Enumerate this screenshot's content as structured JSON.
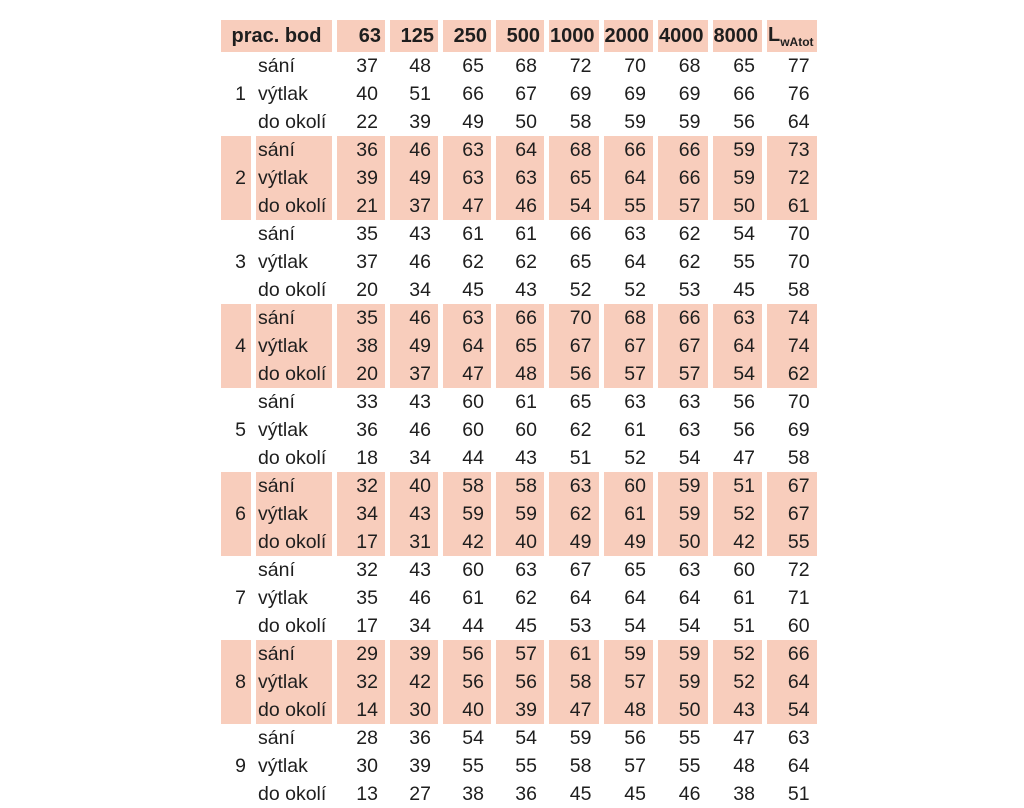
{
  "table": {
    "corner_header": "prac. bod",
    "frequency_headers": [
      "63",
      "125",
      "250",
      "500",
      "1000",
      "2000",
      "4000",
      "8000"
    ],
    "total_header": {
      "main": "L",
      "subscript": "wAtot"
    },
    "row_labels": [
      "sání",
      "výtlak",
      "do okolí"
    ],
    "colors": {
      "shaded_bg": "#f8cdbc",
      "text": "#1e1e1e"
    },
    "groups": [
      {
        "number": "1",
        "shaded": false,
        "rows": [
          [
            37,
            48,
            65,
            68,
            72,
            70,
            68,
            65,
            77
          ],
          [
            40,
            51,
            66,
            67,
            69,
            69,
            69,
            66,
            76
          ],
          [
            22,
            39,
            49,
            50,
            58,
            59,
            59,
            56,
            64
          ]
        ]
      },
      {
        "number": "2",
        "shaded": true,
        "rows": [
          [
            36,
            46,
            63,
            64,
            68,
            66,
            66,
            59,
            73
          ],
          [
            39,
            49,
            63,
            63,
            65,
            64,
            66,
            59,
            72
          ],
          [
            21,
            37,
            47,
            46,
            54,
            55,
            57,
            50,
            61
          ]
        ]
      },
      {
        "number": "3",
        "shaded": false,
        "rows": [
          [
            35,
            43,
            61,
            61,
            66,
            63,
            62,
            54,
            70
          ],
          [
            37,
            46,
            62,
            62,
            65,
            64,
            62,
            55,
            70
          ],
          [
            20,
            34,
            45,
            43,
            52,
            52,
            53,
            45,
            58
          ]
        ]
      },
      {
        "number": "4",
        "shaded": true,
        "rows": [
          [
            35,
            46,
            63,
            66,
            70,
            68,
            66,
            63,
            74
          ],
          [
            38,
            49,
            64,
            65,
            67,
            67,
            67,
            64,
            74
          ],
          [
            20,
            37,
            47,
            48,
            56,
            57,
            57,
            54,
            62
          ]
        ]
      },
      {
        "number": "5",
        "shaded": false,
        "rows": [
          [
            33,
            43,
            60,
            61,
            65,
            63,
            63,
            56,
            70
          ],
          [
            36,
            46,
            60,
            60,
            62,
            61,
            63,
            56,
            69
          ],
          [
            18,
            34,
            44,
            43,
            51,
            52,
            54,
            47,
            58
          ]
        ]
      },
      {
        "number": "6",
        "shaded": true,
        "rows": [
          [
            32,
            40,
            58,
            58,
            63,
            60,
            59,
            51,
            67
          ],
          [
            34,
            43,
            59,
            59,
            62,
            61,
            59,
            52,
            67
          ],
          [
            17,
            31,
            42,
            40,
            49,
            49,
            50,
            42,
            55
          ]
        ]
      },
      {
        "number": "7",
        "shaded": false,
        "rows": [
          [
            32,
            43,
            60,
            63,
            67,
            65,
            63,
            60,
            72
          ],
          [
            35,
            46,
            61,
            62,
            64,
            64,
            64,
            61,
            71
          ],
          [
            17,
            34,
            44,
            45,
            53,
            54,
            54,
            51,
            60
          ]
        ]
      },
      {
        "number": "8",
        "shaded": true,
        "rows": [
          [
            29,
            39,
            56,
            57,
            61,
            59,
            59,
            52,
            66
          ],
          [
            32,
            42,
            56,
            56,
            58,
            57,
            59,
            52,
            64
          ],
          [
            14,
            30,
            40,
            39,
            47,
            48,
            50,
            43,
            54
          ]
        ]
      },
      {
        "number": "9",
        "shaded": false,
        "rows": [
          [
            28,
            36,
            54,
            54,
            59,
            56,
            55,
            47,
            63
          ],
          [
            30,
            39,
            55,
            55,
            58,
            57,
            55,
            48,
            64
          ],
          [
            13,
            27,
            38,
            36,
            45,
            45,
            46,
            38,
            51
          ]
        ]
      }
    ]
  }
}
